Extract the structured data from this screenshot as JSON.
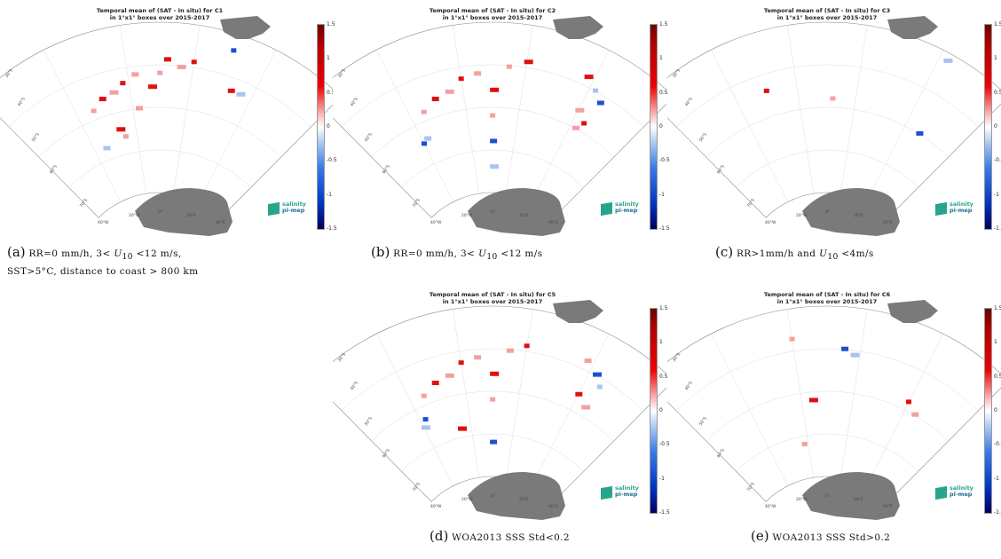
{
  "colorbar": {
    "ticks": [
      "1.5",
      "1",
      "0.5",
      "0",
      "-0.5",
      "-1",
      "-1.5"
    ],
    "colors": {
      "max": "#6b0000",
      "mid": "#ffffff",
      "min": "#00005e",
      "positive": "#e02020",
      "negative": "#2060e0",
      "land": "#7a7a7a"
    }
  },
  "logo": {
    "line1": "salinity",
    "line2": "pi-mep"
  },
  "map_labels": {
    "lat": [
      "30°S",
      "40°S",
      "50°S",
      "60°S",
      "70°S"
    ],
    "lon": [
      "40°W",
      "20°W",
      "0°",
      "20°E",
      "40°E"
    ]
  },
  "panels": [
    {
      "id": "a",
      "title_line1": "Temporal mean of (SAT - In situ) for C1",
      "title_line2": "in 1°x1° boxes over 2015-2017",
      "caption_label": "(a)",
      "caption_pre": "RR=0 mm/h, 3< ",
      "caption_var": "U",
      "caption_sub": "10",
      "caption_post": " <12 m/s,",
      "caption_line2": "SST>5°C, distance to coast > 800 km"
    },
    {
      "id": "b",
      "title_line1": "Temporal mean of (SAT - In situ) for C2",
      "title_line2": "in 1°x1° boxes over 2015-2017",
      "caption_label": "(b)",
      "caption_pre": "RR=0 mm/h, 3< ",
      "caption_var": "U",
      "caption_sub": "10",
      "caption_post": " <12 m/s",
      "caption_line2": ""
    },
    {
      "id": "c",
      "title_line1": "Temporal mean of (SAT - In situ) for C3",
      "title_line2": "in 1°x1° boxes over 2015-2017",
      "caption_label": "(c)",
      "caption_pre": "RR>1mm/h and ",
      "caption_var": "U",
      "caption_sub": "10",
      "caption_post": " <4m/s",
      "caption_line2": ""
    },
    {
      "id": "d",
      "title_line1": "Temporal mean of (SAT - In situ) for C5",
      "title_line2": "in 1°x1° boxes over 2015-2017",
      "caption_label": "(d)",
      "caption_pre": "WOA2013 SSS Std<0.2",
      "caption_var": "",
      "caption_sub": "",
      "caption_post": "",
      "caption_line2": ""
    },
    {
      "id": "e",
      "title_line1": "Temporal mean of (SAT - In situ) for C6",
      "title_line2": "in 1°x1° boxes over 2015-2017",
      "caption_label": "(e)",
      "caption_pre": "WOA2013 SSS Std>0.2",
      "caption_var": "",
      "caption_sub": "",
      "caption_post": "",
      "caption_line2": ""
    }
  ]
}
